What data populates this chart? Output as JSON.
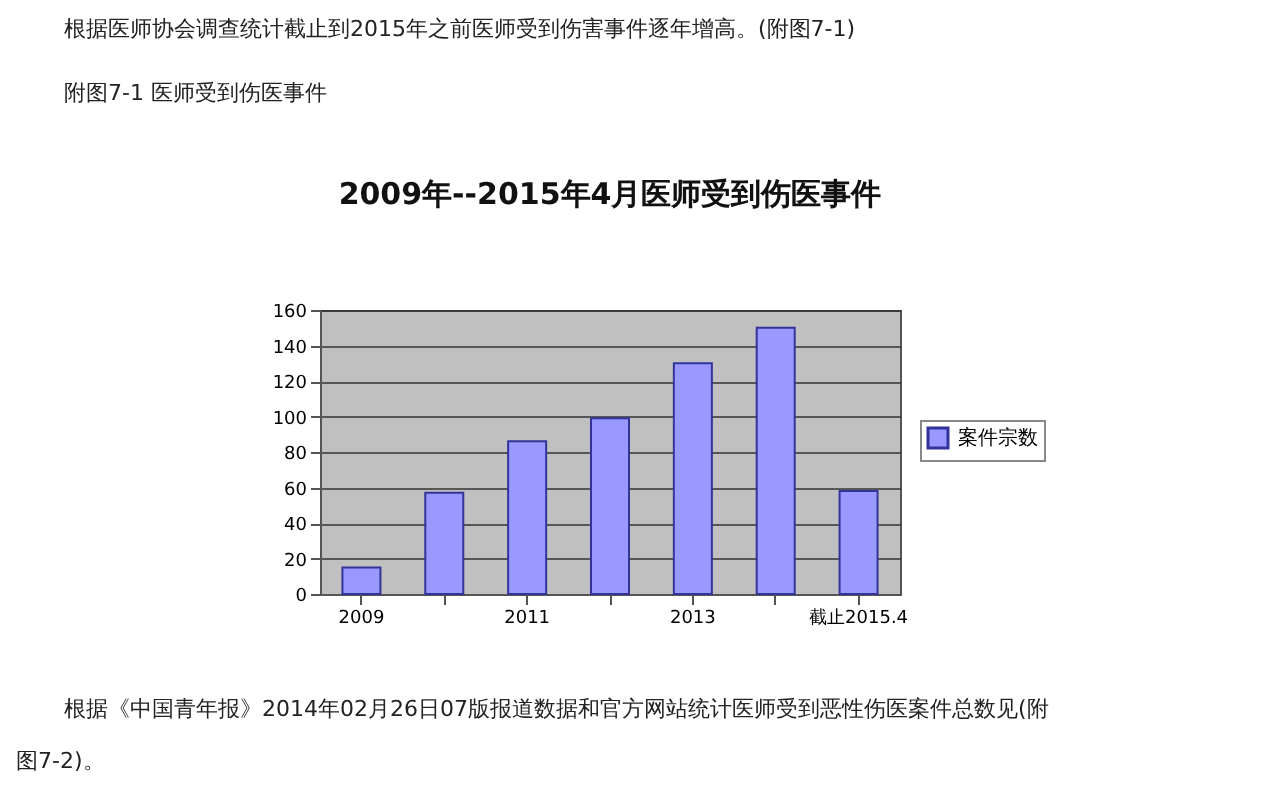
{
  "chart_data": {
    "type": "bar",
    "title": "2009年--2015年4月医师受到伤医事件",
    "categories": [
      "2009",
      null,
      "2011",
      null,
      "2013",
      null,
      "截止2015.4"
    ],
    "series": [
      {
        "name": "案件宗数",
        "color": "#9999ff",
        "values": [
          15,
          57,
          86,
          99,
          130,
          150,
          58
        ]
      }
    ],
    "ylim": [
      0,
      160
    ],
    "yticks": [
      0,
      20,
      40,
      60,
      80,
      100,
      120,
      140,
      160
    ],
    "grid": "y",
    "legend": "right",
    "annotations": [
      "根据医师协会调查统计截止到2015年之前医师受到伤害事件逐年增高。(附图7-1)",
      "附图7-1 医师受到伤医事件",
      "根据《中国青年报》2014年02月26日07版报道数据和官方网站统计医师受到恶性伤医案件总数见(附",
      "图7-2)。"
    ]
  }
}
